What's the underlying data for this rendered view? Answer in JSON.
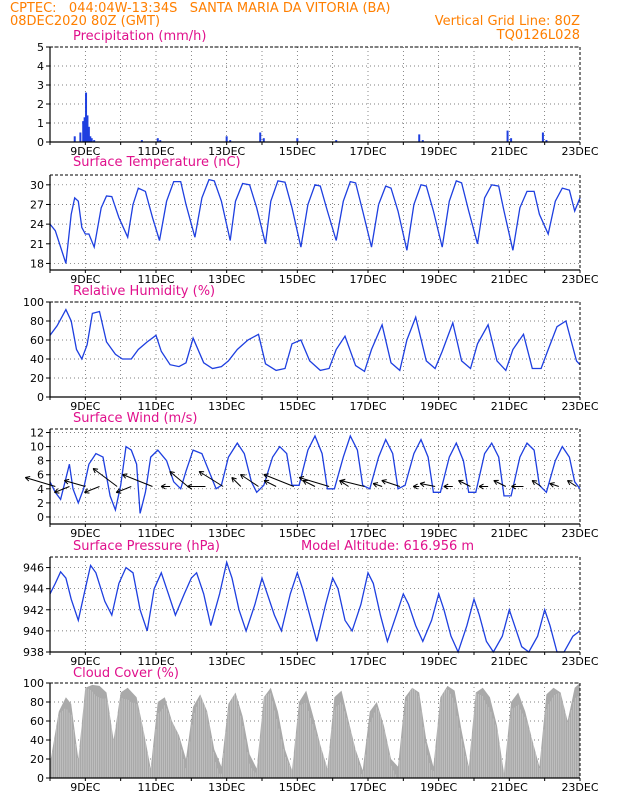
{
  "header": {
    "line1_left": "CPTEC:   044:04W-13:34S   SANTA MARIA DA VITORIA (BA)",
    "line2_left": "08DEC2020 80Z (GMT)",
    "line2_right": "Vertical Grid Line: 80Z",
    "line3_right": "TQ0126L028"
  },
  "colors": {
    "header": "#ff7f00",
    "title": "#e0108c",
    "series": "#1e3fe0",
    "cloud": "#a9a9a9"
  },
  "x_axis": {
    "start_day": 8,
    "end_day": 23,
    "tick_labels": [
      "9DEC",
      "11DEC",
      "13DEC",
      "15DEC",
      "17DEC",
      "19DEC",
      "21DEC",
      "23DEC"
    ]
  },
  "chart_data": [
    {
      "type": "bar",
      "title": "Precipitation (mm/h)",
      "ylim": [
        0,
        5
      ],
      "yticks": [
        "0",
        "1",
        "2",
        "3",
        "4",
        "5"
      ],
      "grid": true,
      "x": [
        8.7,
        8.86,
        8.94,
        8.98,
        9.02,
        9.06,
        9.1,
        9.14,
        9.18,
        9.25,
        10.6,
        11.05,
        11.12,
        13.0,
        13.1,
        13.95,
        14.05,
        15.0,
        16.1,
        18.45,
        18.55,
        20.95,
        21.05,
        21.95,
        22.05
      ],
      "values": [
        0.3,
        0.5,
        1.1,
        1.3,
        2.6,
        1.4,
        0.8,
        0.3,
        0.2,
        0.1,
        0.1,
        0.2,
        0.1,
        0.3,
        0.1,
        0.5,
        0.2,
        0.2,
        0.1,
        0.4,
        0.1,
        0.6,
        0.2,
        0.5,
        0.1
      ]
    },
    {
      "type": "line",
      "title": "Surface Temperature (nC)",
      "ylim": [
        17,
        31.5
      ],
      "yticks": [
        "18",
        "21",
        "24",
        "27",
        "30"
      ],
      "grid": true,
      "x": [
        8.0,
        8.15,
        8.3,
        8.45,
        8.6,
        8.7,
        8.8,
        8.9,
        9.0,
        9.1,
        9.25,
        9.45,
        9.6,
        9.75,
        9.95,
        10.2,
        10.35,
        10.5,
        10.7,
        10.9,
        11.1,
        11.3,
        11.5,
        11.7,
        11.85,
        12.1,
        12.3,
        12.5,
        12.65,
        12.85,
        13.1,
        13.25,
        13.45,
        13.65,
        13.85,
        14.1,
        14.25,
        14.45,
        14.65,
        14.85,
        15.1,
        15.3,
        15.5,
        15.65,
        15.85,
        16.1,
        16.3,
        16.5,
        16.65,
        16.85,
        17.1,
        17.3,
        17.5,
        17.65,
        17.85,
        18.1,
        18.3,
        18.5,
        18.65,
        18.85,
        19.1,
        19.3,
        19.5,
        19.65,
        19.85,
        20.1,
        20.3,
        20.5,
        20.7,
        20.85,
        21.1,
        21.3,
        21.5,
        21.7,
        21.85,
        22.1,
        22.3,
        22.5,
        22.7,
        22.85,
        23.0
      ],
      "values": [
        24.0,
        23.0,
        20.5,
        18.0,
        25.5,
        28.0,
        27.5,
        23.5,
        22.5,
        22.5,
        20.5,
        26.5,
        28.3,
        28.2,
        25.0,
        22.0,
        27.0,
        29.5,
        29.0,
        25.0,
        21.5,
        27.5,
        30.5,
        30.5,
        27.0,
        22.0,
        28.0,
        30.8,
        30.6,
        27.5,
        21.5,
        27.5,
        30.2,
        30.0,
        26.5,
        21.0,
        27.5,
        30.6,
        30.4,
        26.5,
        20.5,
        27.0,
        30.0,
        29.8,
        26.0,
        21.5,
        27.5,
        30.5,
        30.3,
        26.0,
        20.5,
        27.0,
        29.8,
        29.5,
        26.0,
        20.0,
        27.0,
        30.0,
        29.8,
        26.0,
        20.5,
        27.5,
        30.6,
        30.3,
        26.0,
        21.0,
        28.0,
        30.0,
        29.8,
        26.0,
        20.0,
        26.5,
        29.0,
        29.0,
        25.5,
        22.5,
        27.5,
        29.5,
        29.2,
        26.0,
        28.0
      ]
    },
    {
      "type": "line",
      "title": "Relative Humidity (%)",
      "ylim": [
        0,
        100
      ],
      "yticks": [
        "0",
        "20",
        "40",
        "60",
        "80",
        "100"
      ],
      "grid": true,
      "x": [
        8.0,
        8.2,
        8.45,
        8.6,
        8.75,
        8.9,
        9.05,
        9.2,
        9.4,
        9.6,
        9.85,
        10.05,
        10.3,
        10.5,
        10.75,
        11.0,
        11.15,
        11.4,
        11.65,
        11.85,
        12.05,
        12.35,
        12.6,
        12.85,
        13.05,
        13.3,
        13.6,
        13.9,
        14.1,
        14.4,
        14.65,
        14.85,
        15.1,
        15.35,
        15.65,
        15.9,
        16.1,
        16.35,
        16.65,
        16.9,
        17.1,
        17.4,
        17.65,
        17.9,
        18.1,
        18.35,
        18.65,
        18.9,
        19.1,
        19.4,
        19.65,
        19.9,
        20.1,
        20.4,
        20.65,
        20.9,
        21.1,
        21.4,
        21.65,
        21.9,
        22.1,
        22.35,
        22.6,
        22.9,
        23.0
      ],
      "values": [
        65,
        75,
        92,
        80,
        50,
        40,
        55,
        88,
        90,
        58,
        45,
        40,
        40,
        50,
        58,
        65,
        48,
        34,
        32,
        36,
        62,
        36,
        30,
        32,
        38,
        50,
        60,
        66,
        35,
        28,
        30,
        56,
        60,
        38,
        28,
        30,
        50,
        64,
        33,
        27,
        50,
        76,
        36,
        28,
        60,
        84,
        38,
        30,
        48,
        78,
        38,
        30,
        56,
        76,
        38,
        28,
        50,
        66,
        30,
        30,
        50,
        74,
        80,
        38,
        34
      ]
    },
    {
      "type": "line",
      "title": "Surface Wind (m/s)",
      "ylim": [
        -1,
        12.5
      ],
      "yticks": [
        "0",
        "2",
        "4",
        "6",
        "8",
        "10",
        "12"
      ],
      "grid": true,
      "x": [
        8.0,
        8.15,
        8.3,
        8.45,
        8.55,
        8.65,
        8.8,
        8.95,
        9.1,
        9.3,
        9.5,
        9.7,
        9.85,
        10.0,
        10.15,
        10.3,
        10.45,
        10.55,
        10.7,
        10.85,
        11.05,
        11.3,
        11.5,
        11.7,
        11.85,
        12.05,
        12.3,
        12.5,
        12.7,
        12.85,
        13.05,
        13.3,
        13.5,
        13.7,
        13.85,
        14.05,
        14.3,
        14.5,
        14.7,
        14.85,
        15.05,
        15.3,
        15.5,
        15.7,
        15.85,
        16.05,
        16.3,
        16.5,
        16.7,
        16.85,
        17.05,
        17.3,
        17.5,
        17.7,
        17.85,
        18.05,
        18.3,
        18.5,
        18.7,
        18.85,
        19.05,
        19.3,
        19.5,
        19.7,
        19.85,
        20.05,
        20.3,
        20.5,
        20.7,
        20.85,
        21.05,
        21.3,
        21.5,
        21.7,
        21.85,
        22.05,
        22.3,
        22.5,
        22.7,
        22.85,
        23.0
      ],
      "values": [
        5.0,
        3.5,
        2.5,
        5.5,
        7.5,
        4.0,
        2.0,
        4.0,
        7.5,
        9.0,
        8.5,
        3.0,
        1.0,
        4.5,
        10.0,
        9.5,
        7.5,
        0.5,
        3.5,
        8.5,
        9.5,
        8.0,
        5.0,
        4.0,
        6.5,
        9.5,
        9.0,
        6.5,
        4.0,
        4.5,
        8.5,
        10.5,
        9.0,
        5.0,
        3.5,
        4.5,
        8.5,
        10.0,
        9.0,
        4.5,
        4.5,
        9.5,
        11.5,
        9.0,
        4.0,
        4.0,
        8.5,
        11.5,
        9.5,
        4.5,
        4.0,
        8.5,
        11.0,
        9.0,
        4.0,
        4.5,
        9.0,
        11.0,
        8.5,
        3.5,
        3.5,
        8.5,
        10.5,
        8.0,
        3.5,
        3.5,
        9.0,
        10.5,
        8.5,
        3.0,
        3.0,
        8.5,
        10.5,
        9.5,
        4.5,
        3.5,
        8.0,
        10.0,
        8.5,
        5.0,
        4.0
      ],
      "vectors": {
        "x": [
          8.15,
          8.55,
          9.0,
          9.4,
          9.9,
          10.3,
          10.9,
          11.4,
          11.9,
          12.4,
          12.9,
          13.4,
          13.9,
          14.4,
          14.9,
          15.5,
          15.9,
          16.45,
          16.9,
          17.4,
          17.9,
          18.45,
          18.9,
          19.4,
          19.9,
          20.4,
          20.9,
          21.4,
          21.9,
          22.4,
          22.9
        ],
        "u": [
          -1.0,
          -0.5,
          -0.7,
          -0.5,
          -0.8,
          -0.5,
          -1.0,
          -0.3,
          -0.6,
          -0.6,
          -0.8,
          -0.3,
          -0.6,
          -0.4,
          -1.0,
          -0.4,
          -1.0,
          -0.3,
          -0.8,
          -0.3,
          -0.6,
          -0.2,
          -0.5,
          -0.3,
          -0.4,
          -0.3,
          -0.4,
          -0.4,
          -0.3,
          -0.3,
          -0.3
        ],
        "v": [
          0.3,
          -0.2,
          0.2,
          -0.2,
          0.6,
          -0.2,
          0.4,
          0.0,
          0.5,
          0.0,
          0.5,
          0.3,
          0.4,
          0.2,
          0.4,
          0.2,
          0.3,
          0.2,
          0.2,
          0.1,
          0.2,
          0.0,
          0.1,
          0.0,
          0.2,
          0.0,
          0.2,
          0.0,
          0.2,
          0.1,
          0.2
        ]
      }
    },
    {
      "type": "line",
      "title": "Surface Pressure (hPa)",
      "note": "Model Altitude: 616.956 m",
      "ylim": [
        938,
        947
      ],
      "yticks": [
        "938",
        "940",
        "942",
        "944",
        "946"
      ],
      "grid": true,
      "x": [
        8.0,
        8.15,
        8.3,
        8.45,
        8.6,
        8.8,
        9.0,
        9.15,
        9.3,
        9.55,
        9.75,
        9.95,
        10.15,
        10.35,
        10.55,
        10.75,
        10.95,
        11.15,
        11.35,
        11.55,
        11.8,
        12.0,
        12.15,
        12.35,
        12.55,
        12.8,
        13.0,
        13.15,
        13.35,
        13.55,
        13.8,
        14.0,
        14.15,
        14.35,
        14.55,
        14.8,
        15.0,
        15.15,
        15.35,
        15.55,
        15.8,
        16.0,
        16.15,
        16.35,
        16.55,
        16.8,
        17.0,
        17.15,
        17.35,
        17.55,
        17.8,
        18.0,
        18.15,
        18.35,
        18.55,
        18.8,
        19.0,
        19.15,
        19.35,
        19.55,
        19.8,
        20.0,
        20.15,
        20.35,
        20.55,
        20.8,
        21.0,
        21.15,
        21.35,
        21.55,
        21.8,
        22.0,
        22.15,
        22.35,
        22.55,
        22.8,
        23.0
      ],
      "values": [
        943.5,
        944.5,
        945.6,
        945.0,
        943.0,
        941.0,
        944.0,
        946.2,
        945.5,
        942.8,
        941.5,
        944.5,
        946.0,
        945.5,
        942.0,
        940.0,
        944.0,
        945.5,
        943.5,
        941.5,
        943.5,
        945.0,
        945.5,
        943.5,
        940.5,
        943.5,
        946.5,
        945.0,
        942.0,
        940.0,
        942.5,
        945.0,
        943.5,
        941.5,
        940.0,
        943.5,
        945.5,
        944.0,
        941.5,
        939.0,
        942.5,
        945.0,
        944.0,
        941.0,
        940.0,
        942.5,
        945.5,
        944.5,
        941.5,
        939.0,
        941.5,
        943.5,
        942.5,
        940.5,
        939.0,
        941.0,
        943.5,
        942.0,
        939.5,
        938.0,
        940.5,
        943.0,
        941.5,
        939.0,
        937.5,
        939.5,
        942.0,
        940.5,
        938.5,
        937.0,
        939.5,
        942.0,
        940.5,
        938.0,
        937.0,
        939.5,
        940.0
      ]
    },
    {
      "type": "area",
      "title": "Cloud Cover (%)",
      "ylim": [
        0,
        100
      ],
      "yticks": [
        "0",
        "20",
        "40",
        "60",
        "80",
        "100"
      ],
      "grid": true,
      "x": [
        8.0,
        8.25,
        8.45,
        8.6,
        8.8,
        9.0,
        9.2,
        9.4,
        9.6,
        9.8,
        10.0,
        10.2,
        10.45,
        10.65,
        10.85,
        11.05,
        11.25,
        11.45,
        11.65,
        11.85,
        12.05,
        12.25,
        12.45,
        12.65,
        12.85,
        13.05,
        13.25,
        13.45,
        13.65,
        13.85,
        14.05,
        14.25,
        14.45,
        14.65,
        14.85,
        15.05,
        15.25,
        15.45,
        15.65,
        15.85,
        16.05,
        16.25,
        16.45,
        16.65,
        16.85,
        17.05,
        17.25,
        17.45,
        17.65,
        17.85,
        18.05,
        18.25,
        18.45,
        18.65,
        18.85,
        19.05,
        19.25,
        19.45,
        19.65,
        19.85,
        20.05,
        20.25,
        20.45,
        20.65,
        20.85,
        21.05,
        21.25,
        21.45,
        21.65,
        21.85,
        22.05,
        22.25,
        22.45,
        22.65,
        22.85,
        23.0
      ],
      "values": [
        15,
        70,
        85,
        78,
        20,
        95,
        98,
        97,
        90,
        40,
        90,
        95,
        85,
        50,
        10,
        80,
        85,
        60,
        45,
        20,
        75,
        88,
        70,
        30,
        12,
        78,
        90,
        65,
        25,
        10,
        85,
        95,
        70,
        30,
        8,
        80,
        92,
        65,
        35,
        10,
        85,
        92,
        60,
        30,
        8,
        70,
        80,
        55,
        20,
        12,
        85,
        95,
        90,
        40,
        12,
        85,
        97,
        92,
        50,
        12,
        90,
        95,
        85,
        55,
        5,
        80,
        90,
        70,
        40,
        12,
        88,
        95,
        90,
        60,
        95,
        100
      ]
    }
  ]
}
